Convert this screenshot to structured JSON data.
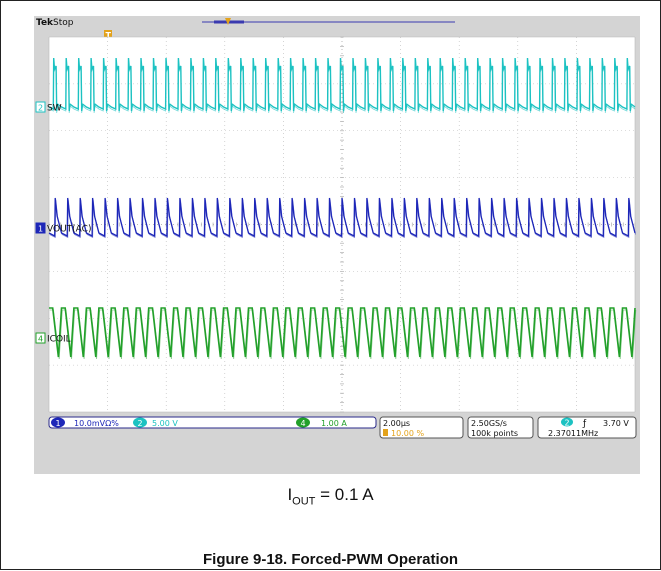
{
  "header": {
    "brand": "Tek",
    "status": "Stop",
    "trigger_marker": "T"
  },
  "channels": [
    {
      "id": "2",
      "label": "SW",
      "color": "#1cc2c2"
    },
    {
      "id": "1",
      "label": "VOUT(AC)",
      "color": "#1d27b8"
    },
    {
      "id": "4",
      "label": "ICOIL",
      "color": "#22a02a"
    }
  ],
  "readouts": {
    "ch1_num": "1",
    "ch1_scale": "10.0mVΩ%",
    "ch2_num": "2",
    "ch2_scale": "5.00 V",
    "ch4_num": "4",
    "ch4_scale": "1.00 A",
    "timebase": "2.00µs",
    "trig_pos": "10.00 %",
    "sample_rate": "2.50GS/s",
    "record_len": "100k points",
    "trig_ch": "2",
    "trig_slope": "ƒ",
    "trig_level": "3.70 V",
    "trig_freq": "2.37011MHz"
  },
  "caption": {
    "prefix": "I",
    "sub": "OUT",
    "suffix": " = 0.1 A"
  },
  "figure_title": "Figure 9-18. Forced-PWM Operation",
  "colors": {
    "screen_bg": "#ffffff",
    "frame_bg": "#d4d4d4",
    "grid": "#b8b8b8"
  },
  "chart_data": {
    "type": "line",
    "title": "",
    "xlabel": "",
    "ylabel": "",
    "grid": true,
    "x_divisions": 10,
    "y_divisions": 8,
    "time_per_div_us": 2.0,
    "switching_frequency_MHz": 2.37011,
    "cycles_in_window": 47,
    "series": [
      {
        "name": "SW",
        "channel": 2,
        "scale": "5.00 V/div",
        "waveform": "pulse"
      },
      {
        "name": "VOUT(AC)",
        "channel": 1,
        "scale": "10.0 mV/div",
        "waveform": "ripple"
      },
      {
        "name": "ICOIL",
        "channel": 4,
        "scale": "1.00 A/div",
        "waveform": "triangle"
      }
    ]
  }
}
